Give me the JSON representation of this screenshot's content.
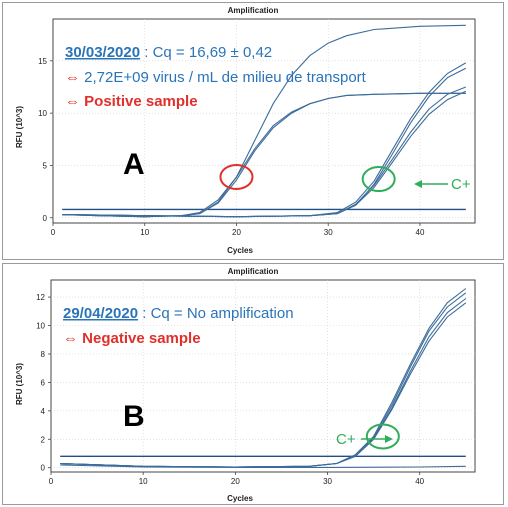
{
  "colors": {
    "curve": "#3d6c9a",
    "baseline": "#1f4f86",
    "blue_text": "#2a74b8",
    "red": "#e0302c",
    "green": "#2fae5a"
  },
  "chart_data": [
    {
      "type": "line",
      "title": "Amplification",
      "xlabel": "Cycles",
      "ylabel": "RFU (10^3)",
      "xlim": [
        0,
        46
      ],
      "ylim": [
        -0.5,
        19
      ],
      "xticks": [
        0,
        10,
        20,
        30,
        40
      ],
      "yticks": [
        0,
        5,
        10,
        15
      ],
      "grid": true,
      "panel_letter": "A",
      "annotation": {
        "date": "30/03/2020",
        "cq": " : Cq = 16,69 ± 0,42",
        "arrow": "⇔",
        "quant": " 2,72E+09 virus / mL de milieu de transport",
        "result": " Positive sample",
        "control": "C+"
      },
      "threshold": 0.8,
      "series": [
        {
          "x": [
            1,
            5,
            10,
            14,
            16,
            18,
            20,
            22,
            24,
            26,
            28,
            30,
            32,
            35,
            40,
            45
          ],
          "y": [
            0.3,
            0.2,
            0.1,
            0.2,
            0.4,
            1.5,
            3.9,
            7.4,
            10.9,
            13.6,
            15.5,
            16.7,
            17.4,
            18.0,
            18.3,
            18.4
          ]
        },
        {
          "x": [
            1,
            5,
            10,
            14,
            16,
            18,
            20,
            22,
            24,
            26,
            28,
            30,
            32,
            35,
            40,
            45
          ],
          "y": [
            0.3,
            0.2,
            0.1,
            0.2,
            0.4,
            1.4,
            3.6,
            6.4,
            8.6,
            10.0,
            10.9,
            11.4,
            11.7,
            11.8,
            11.9,
            11.9
          ]
        },
        {
          "x": [
            1,
            5,
            10,
            14,
            16,
            18,
            20,
            22,
            24,
            26,
            28,
            30,
            32,
            35,
            40,
            45
          ],
          "y": [
            0.3,
            0.2,
            0.1,
            0.2,
            0.5,
            1.7,
            3.9,
            6.6,
            8.8,
            10.1,
            10.9,
            11.4,
            11.7,
            11.8,
            11.9,
            11.9
          ]
        },
        {
          "x": [
            1,
            10,
            20,
            28,
            31,
            33,
            35,
            37,
            39,
            41,
            43,
            45
          ],
          "y": [
            0.3,
            0.2,
            0.1,
            0.2,
            0.5,
            1.5,
            3.5,
            6.5,
            9.5,
            12.0,
            13.8,
            14.8
          ]
        },
        {
          "x": [
            1,
            10,
            20,
            28,
            31,
            33,
            35,
            37,
            39,
            41,
            43,
            45
          ],
          "y": [
            0.3,
            0.2,
            0.1,
            0.2,
            0.4,
            1.2,
            3.2,
            6.1,
            9.1,
            11.6,
            13.4,
            14.3
          ]
        },
        {
          "x": [
            1,
            10,
            20,
            28,
            31,
            33,
            35,
            37,
            39,
            41,
            43,
            45
          ],
          "y": [
            0.3,
            0.2,
            0.1,
            0.2,
            0.4,
            1.3,
            3.1,
            5.6,
            8.2,
            10.4,
            11.8,
            12.5
          ]
        },
        {
          "x": [
            1,
            10,
            20,
            28,
            31,
            33,
            35,
            37,
            39,
            41,
            43,
            45
          ],
          "y": [
            0.3,
            0.2,
            0.1,
            0.2,
            0.4,
            1.2,
            2.9,
            5.3,
            7.8,
            9.9,
            11.3,
            12.1
          ]
        }
      ],
      "circles": [
        {
          "x": 20,
          "y": 3.9,
          "color": "red"
        },
        {
          "x": 35.5,
          "y": 3.7,
          "color": "green"
        }
      ]
    },
    {
      "type": "line",
      "title": "Amplification",
      "xlabel": "Cycles",
      "ylabel": "RFU (10^3)",
      "xlim": [
        0,
        46
      ],
      "ylim": [
        -0.3,
        13.2
      ],
      "xticks": [
        0,
        10,
        20,
        30,
        40
      ],
      "yticks": [
        0,
        2,
        4,
        6,
        8,
        10,
        12
      ],
      "grid": true,
      "panel_letter": "B",
      "annotation": {
        "date": "29/04/2020",
        "cq": " : Cq = No amplification",
        "arrow": "⇔",
        "result": " Negative sample",
        "control": "C+"
      },
      "threshold": 0.8,
      "series": [
        {
          "x": [
            1,
            10,
            20,
            28,
            31,
            33,
            35,
            37,
            39,
            41,
            43,
            45
          ],
          "y": [
            0.3,
            0.1,
            0.05,
            0.1,
            0.3,
            0.9,
            2.2,
            4.6,
            7.3,
            9.8,
            11.6,
            12.6
          ]
        },
        {
          "x": [
            1,
            10,
            20,
            28,
            31,
            33,
            35,
            37,
            39,
            41,
            43,
            45
          ],
          "y": [
            0.3,
            0.1,
            0.05,
            0.1,
            0.3,
            0.9,
            2.1,
            4.4,
            7.1,
            9.6,
            11.3,
            12.3
          ]
        },
        {
          "x": [
            1,
            10,
            20,
            28,
            31,
            33,
            35,
            37,
            39,
            41,
            43,
            45
          ],
          "y": [
            0.3,
            0.1,
            0.05,
            0.1,
            0.3,
            0.8,
            2.0,
            4.2,
            6.8,
            9.2,
            10.9,
            11.9
          ]
        },
        {
          "x": [
            1,
            10,
            20,
            28,
            31,
            33,
            35,
            37,
            39,
            41,
            43,
            45
          ],
          "y": [
            0.3,
            0.1,
            0.05,
            0.1,
            0.3,
            0.8,
            2.0,
            4.1,
            6.6,
            8.9,
            10.6,
            11.6
          ]
        },
        {
          "x": [
            1,
            10,
            20,
            30,
            40,
            45
          ],
          "y": [
            0.2,
            0.05,
            0.02,
            0.02,
            0.05,
            0.1
          ]
        }
      ],
      "circles": [
        {
          "x": 36,
          "y": 2.2,
          "color": "green"
        }
      ]
    }
  ]
}
